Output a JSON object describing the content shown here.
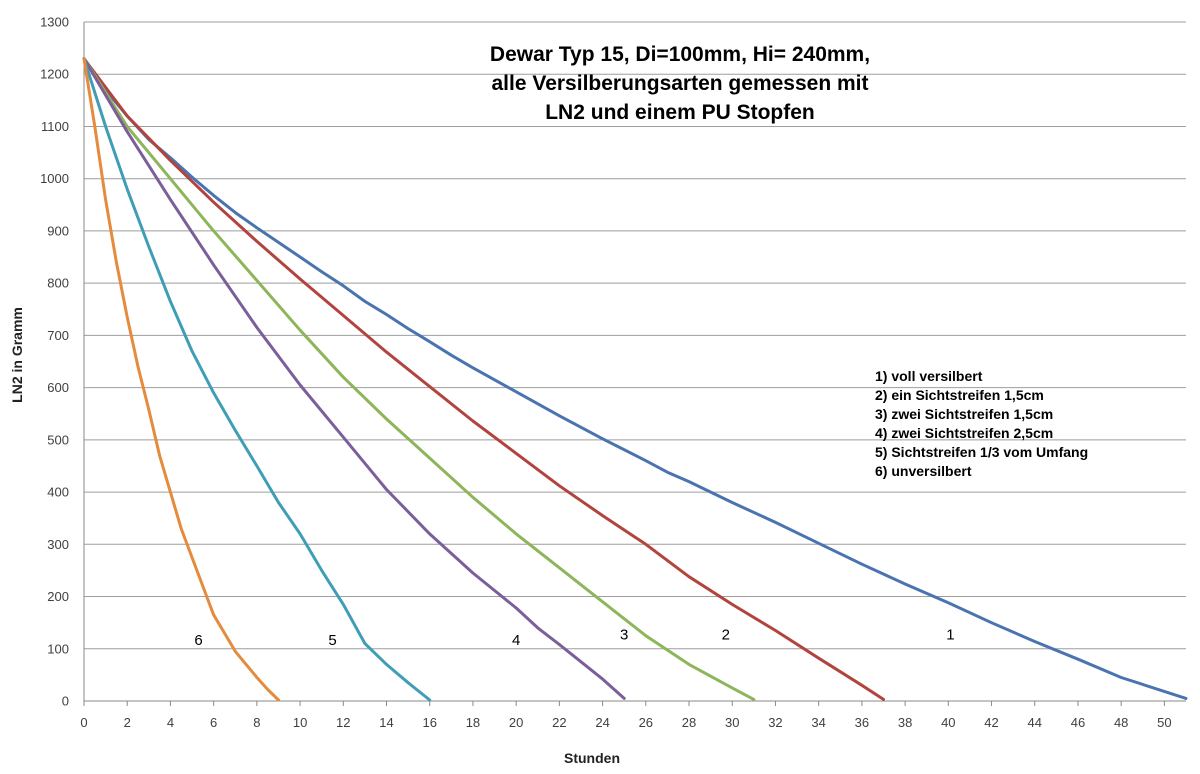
{
  "chart_data": {
    "type": "line",
    "title_lines": [
      "Dewar Typ 15, Di=100mm, Hi= 240mm,",
      "alle Versilberungsarten gemessen mit",
      "LN2 und  einem PU Stopfen"
    ],
    "xlabel": "Stunden",
    "ylabel": "LN2 in Gramm",
    "xlim": [
      0,
      51
    ],
    "ylim": [
      0,
      1300
    ],
    "x_ticks": [
      0,
      2,
      4,
      6,
      8,
      10,
      12,
      14,
      16,
      18,
      20,
      22,
      24,
      26,
      28,
      30,
      32,
      34,
      36,
      38,
      40,
      42,
      44,
      46,
      48,
      50
    ],
    "y_ticks": [
      0,
      100,
      200,
      300,
      400,
      500,
      600,
      700,
      800,
      900,
      1000,
      1100,
      1200,
      1300
    ],
    "grid": "horizontal",
    "legend": [
      "1) voll versilbert",
      "2) ein Sichtstreifen  1,5cm",
      "3) zwei Sichtstreifen  1,5cm",
      "4) zwei Sichtstreifen  2,5cm",
      "5) Sichtstreifen  1/3  vom Umfang",
      "6) unversilbert"
    ],
    "series": [
      {
        "name": "1",
        "label": "1",
        "label_at": [
          40.1,
          127
        ],
        "color": "#4a74b0",
        "points": [
          [
            0,
            1230
          ],
          [
            1,
            1170
          ],
          [
            2,
            1120
          ],
          [
            3,
            1075
          ],
          [
            4,
            1040
          ],
          [
            5,
            1003
          ],
          [
            6,
            968
          ],
          [
            7,
            935
          ],
          [
            8,
            906
          ],
          [
            9,
            878
          ],
          [
            10,
            850
          ],
          [
            11,
            822
          ],
          [
            12,
            795
          ],
          [
            13,
            765
          ],
          [
            14,
            740
          ],
          [
            15,
            713
          ],
          [
            16,
            688
          ],
          [
            17,
            662
          ],
          [
            18,
            638
          ],
          [
            19,
            615
          ],
          [
            20,
            592
          ],
          [
            22,
            546
          ],
          [
            24,
            502
          ],
          [
            26,
            460
          ],
          [
            27,
            438
          ],
          [
            28,
            420
          ],
          [
            30,
            380
          ],
          [
            32,
            342
          ],
          [
            34,
            302
          ],
          [
            36,
            262
          ],
          [
            38,
            224
          ],
          [
            40,
            188
          ],
          [
            42,
            150
          ],
          [
            44,
            114
          ],
          [
            46,
            80
          ],
          [
            48,
            45
          ],
          [
            51,
            5
          ]
        ]
      },
      {
        "name": "2",
        "label": "2",
        "label_at": [
          29.7,
          127
        ],
        "color": "#b2443f",
        "points": [
          [
            0,
            1230
          ],
          [
            2,
            1120
          ],
          [
            4,
            1035
          ],
          [
            6,
            955
          ],
          [
            8,
            880
          ],
          [
            10,
            808
          ],
          [
            12,
            738
          ],
          [
            14,
            668
          ],
          [
            16,
            602
          ],
          [
            18,
            536
          ],
          [
            20,
            474
          ],
          [
            22,
            412
          ],
          [
            24,
            355
          ],
          [
            26,
            300
          ],
          [
            28,
            238
          ],
          [
            30,
            185
          ],
          [
            32,
            135
          ],
          [
            34,
            82
          ],
          [
            36,
            30
          ],
          [
            37,
            3
          ]
        ]
      },
      {
        "name": "3",
        "label": "3",
        "label_at": [
          25,
          127
        ],
        "color": "#8db55a",
        "points": [
          [
            0,
            1230
          ],
          [
            2,
            1100
          ],
          [
            4,
            1000
          ],
          [
            6,
            900
          ],
          [
            8,
            805
          ],
          [
            10,
            710
          ],
          [
            12,
            620
          ],
          [
            14,
            540
          ],
          [
            16,
            465
          ],
          [
            18,
            390
          ],
          [
            20,
            320
          ],
          [
            22,
            255
          ],
          [
            24,
            190
          ],
          [
            26,
            125
          ],
          [
            28,
            70
          ],
          [
            30,
            25
          ],
          [
            31,
            3
          ]
        ]
      },
      {
        "name": "4",
        "label": "4",
        "label_at": [
          20,
          117
        ],
        "color": "#7b5e9a",
        "points": [
          [
            0,
            1230
          ],
          [
            2,
            1090
          ],
          [
            4,
            960
          ],
          [
            6,
            835
          ],
          [
            8,
            715
          ],
          [
            10,
            605
          ],
          [
            12,
            505
          ],
          [
            14,
            405
          ],
          [
            16,
            320
          ],
          [
            18,
            245
          ],
          [
            20,
            178
          ],
          [
            21,
            140
          ],
          [
            22,
            108
          ],
          [
            23,
            75
          ],
          [
            24,
            42
          ],
          [
            25,
            5
          ]
        ]
      },
      {
        "name": "5",
        "label": "5",
        "label_at": [
          11.5,
          117
        ],
        "color": "#3f9eb5",
        "points": [
          [
            0,
            1230
          ],
          [
            1,
            1100
          ],
          [
            2,
            980
          ],
          [
            3,
            870
          ],
          [
            4,
            765
          ],
          [
            5,
            670
          ],
          [
            6,
            590
          ],
          [
            7,
            518
          ],
          [
            8,
            450
          ],
          [
            9,
            380
          ],
          [
            10,
            320
          ],
          [
            11,
            250
          ],
          [
            12,
            185
          ],
          [
            13,
            110
          ],
          [
            14,
            70
          ],
          [
            15,
            35
          ],
          [
            16,
            2
          ]
        ]
      },
      {
        "name": "6",
        "label": "6",
        "label_at": [
          5.3,
          117
        ],
        "color": "#e48b3e",
        "points": [
          [
            0,
            1230
          ],
          [
            0.5,
            1100
          ],
          [
            1,
            960
          ],
          [
            1.5,
            840
          ],
          [
            2,
            735
          ],
          [
            2.5,
            640
          ],
          [
            3,
            558
          ],
          [
            3.5,
            470
          ],
          [
            4,
            400
          ],
          [
            4.5,
            330
          ],
          [
            5,
            275
          ],
          [
            5.5,
            220
          ],
          [
            6,
            165
          ],
          [
            6.5,
            130
          ],
          [
            7,
            95
          ],
          [
            7.5,
            70
          ],
          [
            8,
            45
          ],
          [
            8.5,
            22
          ],
          [
            9,
            2
          ]
        ]
      }
    ]
  }
}
